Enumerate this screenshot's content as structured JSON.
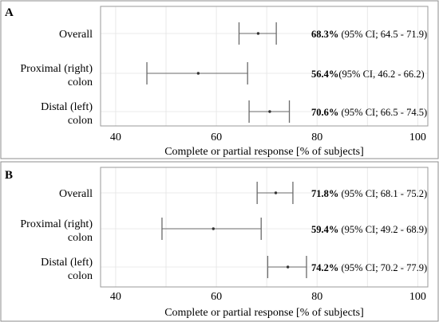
{
  "chart_data": [
    {
      "type": "forest",
      "panel_label": "A",
      "categories": [
        "Overall",
        "Proximal (right) colon",
        "Distal (left) colon"
      ],
      "category_lines": [
        [
          "Overall"
        ],
        [
          "Proximal (right)",
          "colon"
        ],
        [
          "Distal (left)",
          "colon"
        ]
      ],
      "estimates": [
        68.3,
        56.4,
        70.6
      ],
      "ci_lower": [
        64.5,
        46.2,
        66.5
      ],
      "ci_upper": [
        71.9,
        66.2,
        74.5
      ],
      "annotations": [
        {
          "estimate": "68.3%",
          "ci": " (95% CI; 64.5 - 71.9)"
        },
        {
          "estimate": "56.4%",
          "ci": "(95% CI, 46.2 - 66.2)"
        },
        {
          "estimate": "70.6%",
          "ci": " (95% CI; 66.5 - 74.5)"
        }
      ],
      "xlabel": "Complete or partial response [% of subjects]",
      "xlim": [
        37,
        102
      ],
      "xticks": [
        40,
        60,
        80,
        100
      ],
      "grid": true
    },
    {
      "type": "forest",
      "panel_label": "B",
      "categories": [
        "Overall",
        "Proximal (right) colon",
        "Distal (left) colon"
      ],
      "category_lines": [
        [
          "Overall"
        ],
        [
          "Proximal (right)",
          "colon"
        ],
        [
          "Distal (left)",
          "colon"
        ]
      ],
      "estimates": [
        71.8,
        59.4,
        74.2
      ],
      "ci_lower": [
        68.1,
        49.2,
        70.2
      ],
      "ci_upper": [
        75.2,
        68.9,
        77.9
      ],
      "annotations": [
        {
          "estimate": "71.8%",
          "ci": " (95% CI; 68.1 - 75.2)"
        },
        {
          "estimate": "59.4%",
          "ci": " (95% CI; 49.2 - 68.9)"
        },
        {
          "estimate": "74.2%",
          "ci": " (95% CI; 70.2 - 77.9)"
        }
      ],
      "xlabel": "Complete or partial response [% of subjects]",
      "xlim": [
        37,
        102
      ],
      "xticks": [
        40,
        60,
        80,
        100
      ],
      "grid": true
    }
  ]
}
